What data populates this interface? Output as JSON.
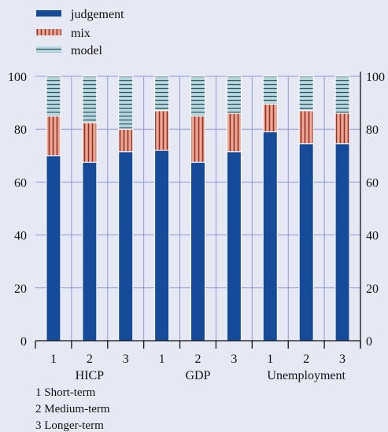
{
  "chart_data": {
    "type": "bar",
    "stacked": true,
    "percent": true,
    "groups": [
      "HICP",
      "GDP",
      "Unemployment"
    ],
    "categories": [
      "1",
      "2",
      "3",
      "1",
      "2",
      "3",
      "1",
      "2",
      "3"
    ],
    "series": [
      {
        "name": "judgement",
        "values": [
          70,
          67.5,
          71.5,
          72,
          67.5,
          71.5,
          79,
          74.5,
          74.5
        ]
      },
      {
        "name": "mix",
        "values": [
          15,
          15,
          8.5,
          15,
          17.5,
          14.5,
          10.5,
          12.5,
          11.5
        ]
      },
      {
        "name": "model",
        "values": [
          15,
          17.5,
          20,
          13,
          15,
          14,
          10.5,
          13,
          14
        ]
      }
    ],
    "ylim": [
      0,
      100
    ],
    "yticks": [
      0,
      20,
      40,
      60,
      80,
      100
    ],
    "grid": true,
    "legend_position": "top-left",
    "colors": {
      "judgement": "#164b99",
      "mix_fill": "#e8ab96",
      "mix_hatch": "#9c2a26",
      "model_fill": "#b9d8df",
      "model_hatch": "#2e5964",
      "grid": "#8f97d6",
      "background": "#e6e9f4"
    },
    "notes": [
      "1 Short-term",
      "2 Medium-term",
      "3 Longer-term"
    ]
  }
}
